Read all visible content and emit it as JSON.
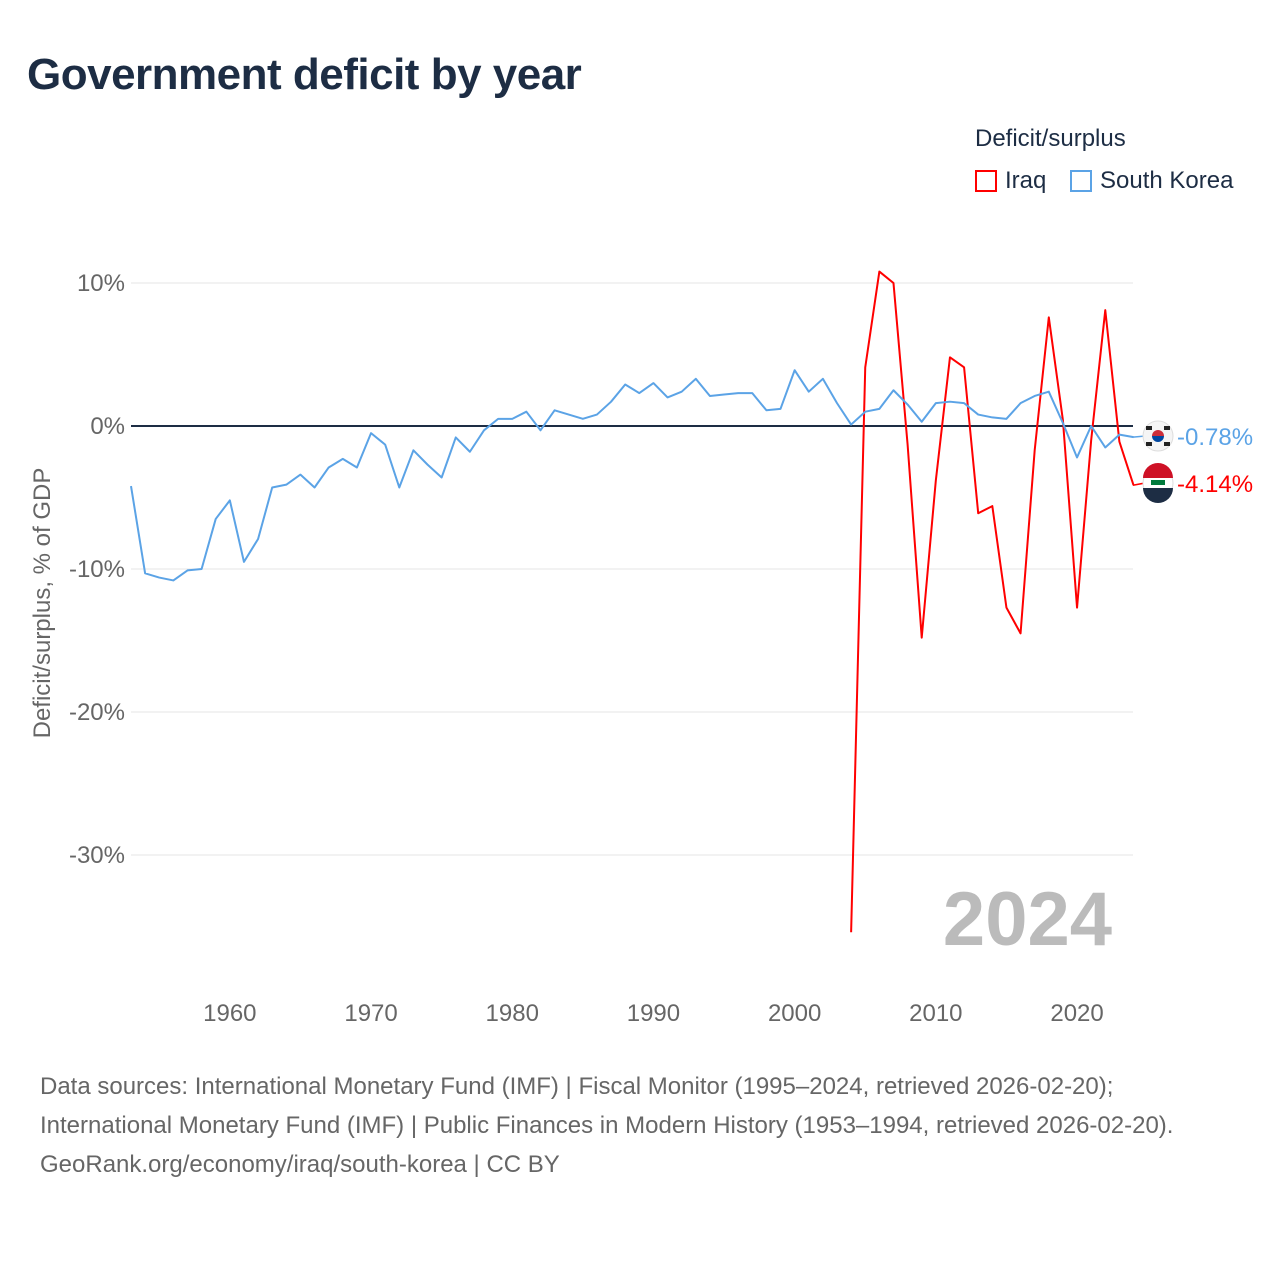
{
  "title": "Government deficit by year",
  "legend": {
    "title": "Deficit/surplus",
    "items": [
      {
        "name": "Iraq",
        "color": "#ff0000"
      },
      {
        "name": "South Korea",
        "color": "#5ba3e6"
      }
    ]
  },
  "year_overlay": "2024",
  "footer": {
    "sources": "Data sources: International Monetary Fund (IMF) | Fiscal Monitor (1995–2024, retrieved 2026-02-20); International Monetary Fund (IMF) | Public Finances in Modern History (1953–1994, retrieved 2026-02-20).",
    "credit": "GeoRank.org/economy/iraq/south-korea | CC BY"
  },
  "chart_data": {
    "type": "line",
    "title": "Government deficit by year",
    "xlabel": "",
    "ylabel": "Deficit/surplus, % of GDP",
    "xlim": [
      1953,
      2024
    ],
    "ylim": [
      -36,
      11
    ],
    "x_ticks": [
      1960,
      1970,
      1980,
      1990,
      2000,
      2010,
      2020
    ],
    "y_ticks": [
      {
        "v": 10,
        "label": "10%"
      },
      {
        "v": 0,
        "label": "0%"
      },
      {
        "v": -10,
        "label": "-10%"
      },
      {
        "v": -20,
        "label": "-20%"
      },
      {
        "v": -30,
        "label": "-30%"
      }
    ],
    "grid": true,
    "legend_position": "top-right",
    "series": [
      {
        "name": "South Korea",
        "color": "#5ba3e6",
        "end_label": "-0.78%",
        "start_year": 1953,
        "values": [
          -4.2,
          -10.3,
          -10.6,
          -10.8,
          -10.1,
          -10.0,
          -6.5,
          -5.2,
          -9.5,
          -7.9,
          -4.3,
          -4.1,
          -3.4,
          -4.3,
          -2.9,
          -2.3,
          -2.9,
          -0.5,
          -1.3,
          -4.3,
          -1.7,
          -2.7,
          -3.6,
          -0.8,
          -1.8,
          -0.3,
          0.5,
          0.5,
          1.0,
          -0.3,
          1.1,
          0.8,
          0.5,
          0.8,
          1.7,
          2.9,
          2.3,
          3.0,
          2.0,
          2.4,
          3.3,
          2.1,
          2.2,
          2.3,
          2.3,
          1.1,
          1.2,
          3.9,
          2.4,
          3.3,
          1.6,
          0.1,
          1.0,
          1.2,
          2.5,
          1.5,
          0.3,
          1.6,
          1.7,
          1.6,
          0.8,
          0.6,
          0.5,
          1.6,
          2.1,
          2.4,
          0.2,
          -2.2,
          0.0,
          -1.5,
          -0.6,
          -0.78
        ]
      },
      {
        "name": "Iraq",
        "color": "#ff0000",
        "end_label": "-4.14%",
        "start_year": 2004,
        "values": [
          -35.4,
          4.1,
          10.8,
          10.0,
          -1.3,
          -14.8,
          -3.8,
          4.8,
          4.1,
          -6.1,
          -5.6,
          -12.7,
          -14.5,
          -1.7,
          7.6,
          0.4,
          -12.7,
          -1.0,
          8.1,
          -1.1,
          -4.14
        ]
      }
    ]
  }
}
